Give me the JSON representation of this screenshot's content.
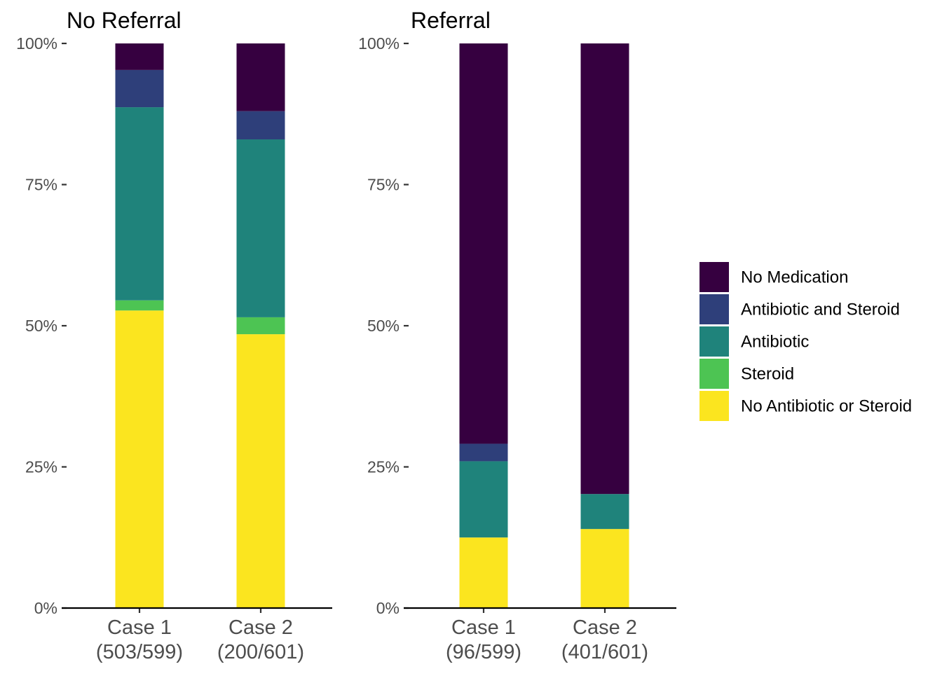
{
  "chart_data": {
    "type": "bar",
    "stacked": true,
    "ylim": [
      0,
      1
    ],
    "yticks": [
      0,
      0.25,
      0.5,
      0.75,
      1
    ],
    "ytick_labels": [
      "0%",
      "25%",
      "50%",
      "75%",
      "100%"
    ],
    "grid": false,
    "legend_position": "right",
    "series_colors": {
      "No Medication": "#360040",
      "Antibiotic and Steroid": "#2e3f7a",
      "Antibiotic": "#1f837b",
      "Steroid": "#4dc453",
      "No Antibiotic or Steroid": "#fbe51f"
    },
    "legend": [
      "No Medication",
      "Antibiotic and Steroid",
      "Antibiotic",
      "Steroid",
      "No Antibiotic or Steroid"
    ],
    "panels": [
      {
        "title": "No Referral",
        "categories": [
          {
            "line1": "Case 1",
            "line2": "(503/599)"
          },
          {
            "line1": "Case 2",
            "line2": "(200/601)"
          }
        ],
        "series": [
          {
            "name": "No Antibiotic or Steroid",
            "values": [
              0.527,
              0.485
            ]
          },
          {
            "name": "Steroid",
            "values": [
              0.018,
              0.03
            ]
          },
          {
            "name": "Antibiotic",
            "values": [
              0.342,
              0.315
            ]
          },
          {
            "name": "Antibiotic and Steroid",
            "values": [
              0.066,
              0.05
            ]
          },
          {
            "name": "No Medication",
            "values": [
              0.047,
              0.12
            ]
          }
        ]
      },
      {
        "title": "Referral",
        "categories": [
          {
            "line1": "Case 1",
            "line2": "(96/599)"
          },
          {
            "line1": "Case 2",
            "line2": "(401/601)"
          }
        ],
        "series": [
          {
            "name": "No Antibiotic or Steroid",
            "values": [
              0.125,
              0.14
            ]
          },
          {
            "name": "Steroid",
            "values": [
              0.0,
              0.0
            ]
          },
          {
            "name": "Antibiotic",
            "values": [
              0.135,
              0.062
            ]
          },
          {
            "name": "Antibiotic and Steroid",
            "values": [
              0.031,
              0.0
            ]
          },
          {
            "name": "No Medication",
            "values": [
              0.709,
              0.798
            ]
          }
        ]
      }
    ]
  }
}
